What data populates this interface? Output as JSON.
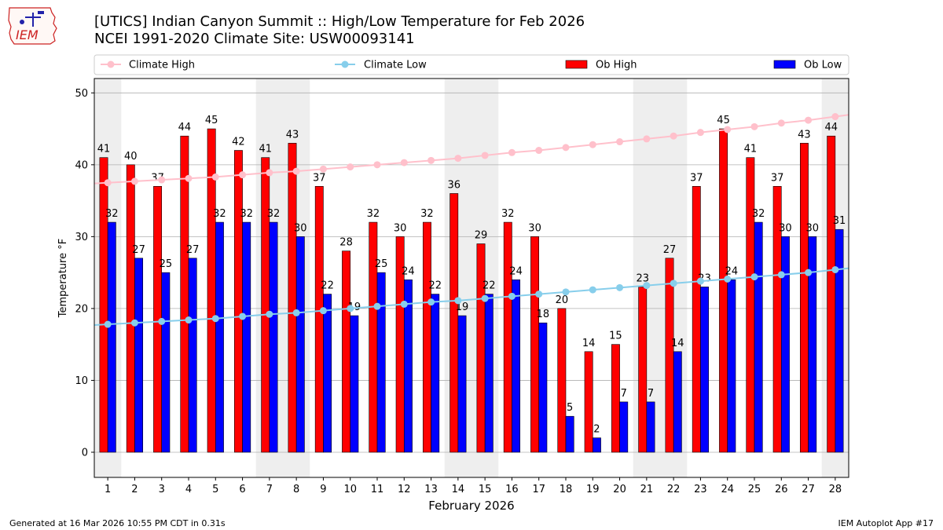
{
  "title_line1": "[UTICS] Indian Canyon Summit  :: High/Low Temperature for Feb 2026",
  "title_line2": "NCEI 1991-2020 Climate Site: USW00093141",
  "logo_text": "IEM",
  "footer_left": "Generated at 16 Mar 2026 10:55 PM CDT in 0.31s",
  "footer_right": "IEM Autoplot App #17",
  "colors": {
    "ob_high": "#ff0000",
    "ob_low": "#0000ff",
    "climate_high": "#ffc0cb",
    "climate_low": "#87ceeb",
    "weekend_shade": "#eeeeee",
    "grid": "#b0b0b0"
  },
  "chart_data": {
    "type": "bar",
    "xlabel": "February 2026",
    "ylabel": "Temperature °F",
    "ylim": [
      -3.5,
      52
    ],
    "yticks": [
      0,
      10,
      20,
      30,
      40,
      50
    ],
    "grid": "horizontal",
    "legend_placement": "top, above plot",
    "categories": [
      1,
      2,
      3,
      4,
      5,
      6,
      7,
      8,
      9,
      10,
      11,
      12,
      13,
      14,
      15,
      16,
      17,
      18,
      19,
      20,
      21,
      22,
      23,
      24,
      25,
      26,
      27,
      28
    ],
    "weekend_spans": [
      [
        1,
        1
      ],
      [
        7,
        8
      ],
      [
        14,
        15
      ],
      [
        21,
        22
      ],
      [
        28,
        28
      ]
    ],
    "series": [
      {
        "name": "Ob High",
        "kind": "bar",
        "values": [
          41,
          40,
          37,
          44,
          45,
          42,
          41,
          43,
          37,
          28,
          32,
          30,
          32,
          36,
          29,
          32,
          30,
          20,
          14,
          15,
          23,
          27,
          37,
          45,
          41,
          37,
          43,
          44
        ]
      },
      {
        "name": "Ob Low",
        "kind": "bar",
        "values": [
          32,
          27,
          25,
          27,
          32,
          32,
          32,
          30,
          22,
          19,
          25,
          24,
          22,
          19,
          22,
          24,
          18,
          5,
          2,
          7,
          7,
          14,
          23,
          24,
          32,
          30,
          30,
          31
        ]
      },
      {
        "name": "Climate High",
        "kind": "line",
        "values": [
          37.5,
          37.7,
          37.9,
          38.1,
          38.3,
          38.6,
          38.9,
          39.1,
          39.4,
          39.7,
          40.0,
          40.3,
          40.6,
          40.9,
          41.3,
          41.7,
          42.0,
          42.4,
          42.8,
          43.2,
          43.6,
          44.0,
          44.5,
          44.9,
          45.3,
          45.8,
          46.2,
          46.7
        ]
      },
      {
        "name": "Climate Low",
        "kind": "line",
        "values": [
          17.8,
          18.0,
          18.2,
          18.4,
          18.6,
          18.9,
          19.2,
          19.4,
          19.7,
          20.0,
          20.3,
          20.6,
          20.9,
          21.1,
          21.4,
          21.7,
          22.0,
          22.3,
          22.6,
          22.9,
          23.2,
          23.5,
          23.8,
          24.1,
          24.4,
          24.7,
          25.0,
          25.4
        ]
      }
    ]
  }
}
